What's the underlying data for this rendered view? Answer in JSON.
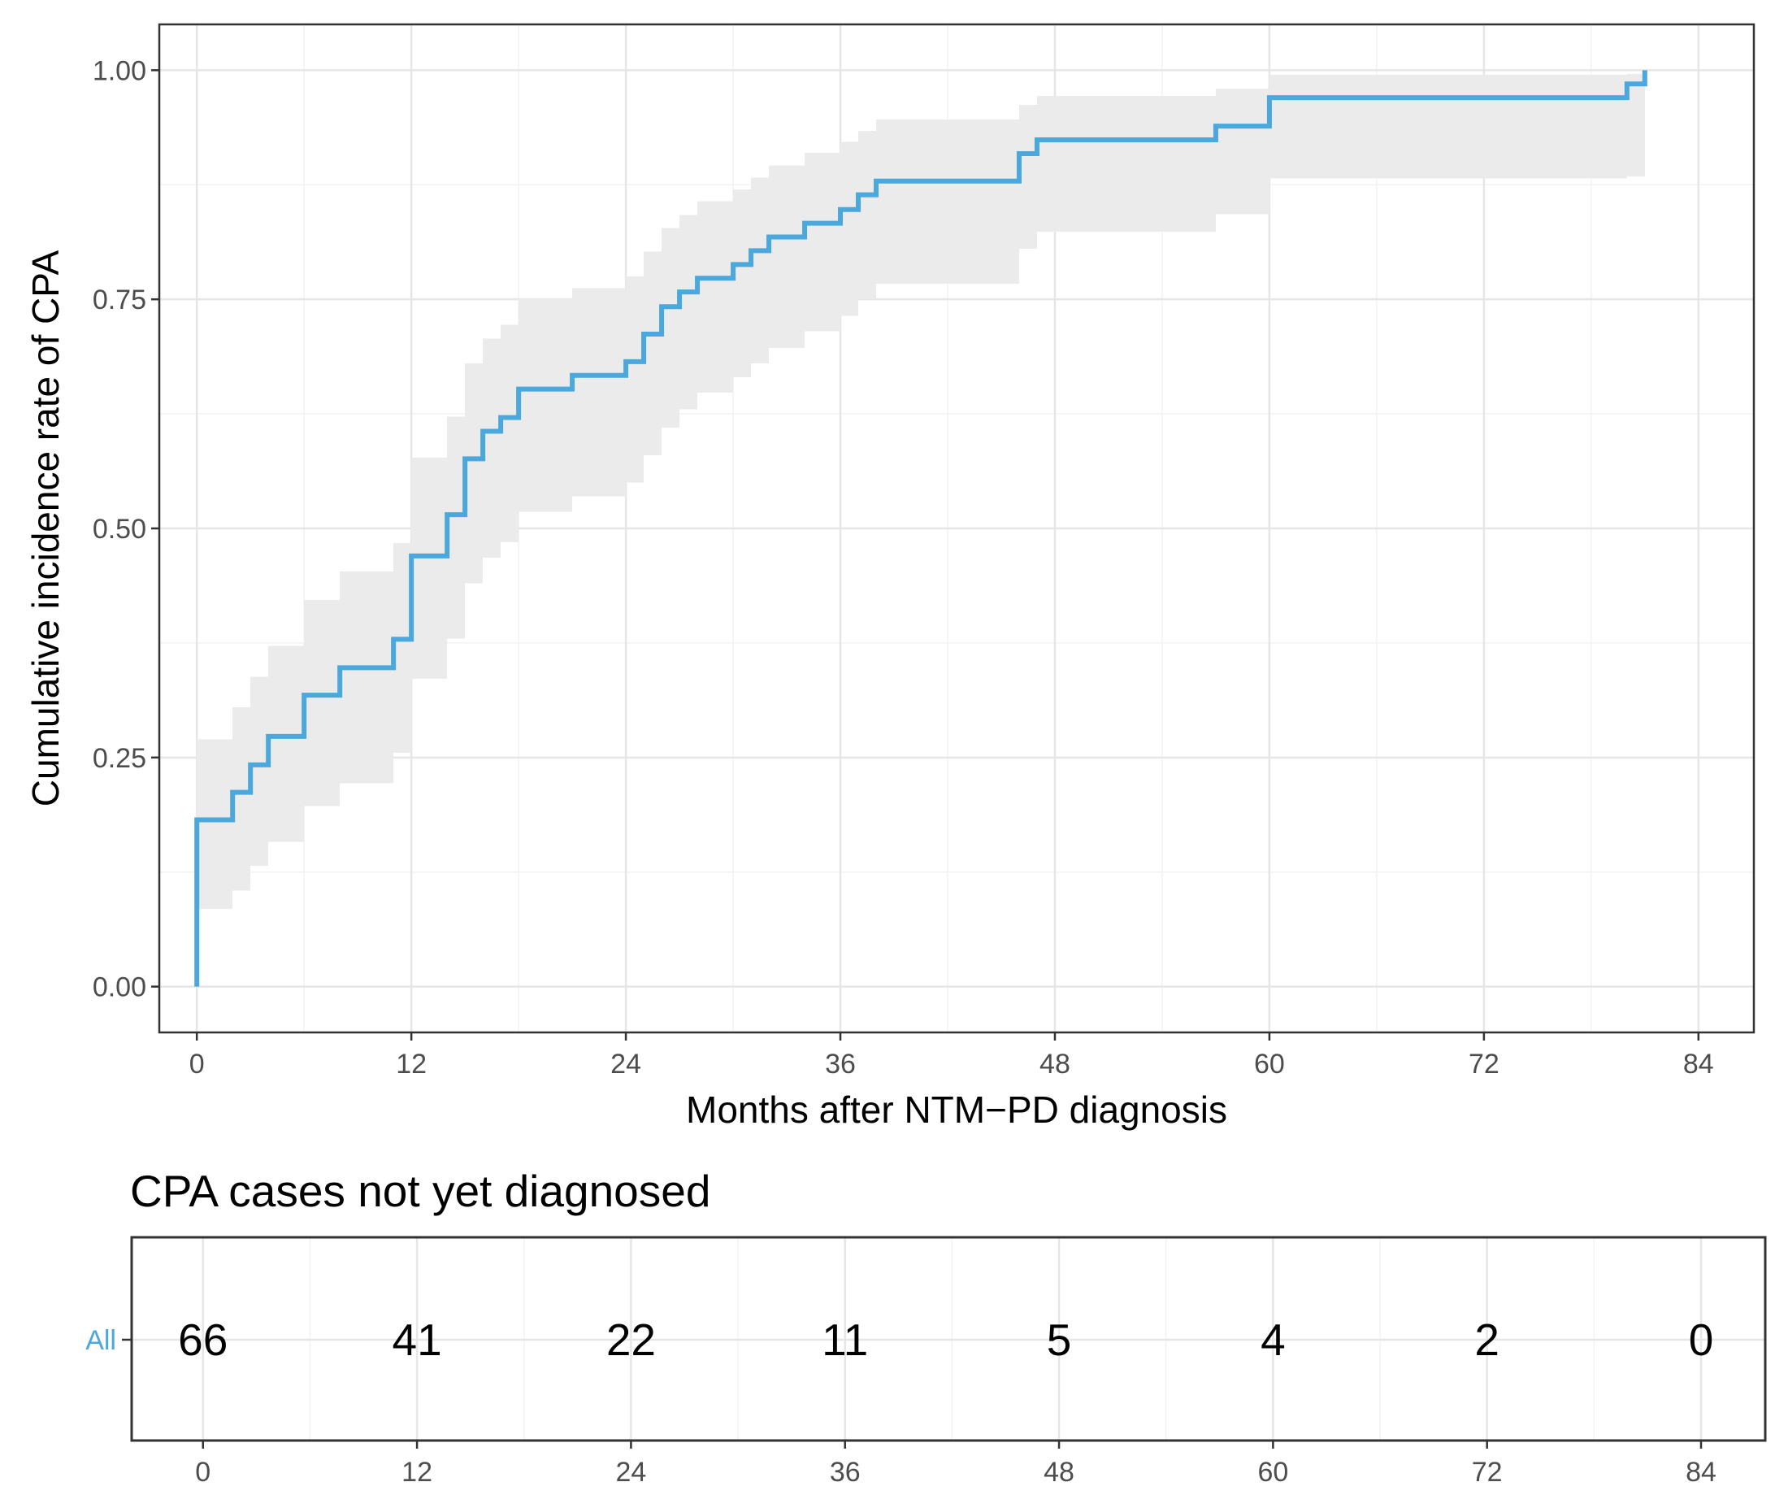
{
  "chart_data": [
    {
      "type": "line",
      "step": true,
      "xlabel": "Months after NTM−PD diagnosis",
      "ylabel": "Cumulative incidence rate of CPA",
      "xlim": [
        -2.1,
        87.1
      ],
      "ylim": [
        -0.05,
        1.05
      ],
      "x_ticks": [
        0,
        12,
        24,
        36,
        48,
        60,
        72,
        84
      ],
      "x_tick_labels": [
        "0",
        "12",
        "24",
        "36",
        "48",
        "60",
        "72",
        "84"
      ],
      "y_ticks": [
        0,
        0.25,
        0.5,
        0.75,
        1.0
      ],
      "y_tick_labels": [
        "0.00",
        "0.25",
        "0.50",
        "0.75",
        "1.00"
      ],
      "grid": true,
      "colors": {
        "line": "#4aa8dc",
        "band": "#ebebeb"
      },
      "series": [
        {
          "x": [
            0,
            0,
            2,
            3,
            4,
            6,
            8,
            11,
            12,
            14,
            15,
            16,
            17,
            18,
            21,
            24,
            25,
            26,
            27,
            28,
            30,
            31,
            32,
            34,
            36,
            37,
            38,
            46,
            47,
            57,
            60,
            80,
            81
          ],
          "y": [
            0,
            0.182,
            0.212,
            0.242,
            0.273,
            0.318,
            0.348,
            0.379,
            0.47,
            0.515,
            0.576,
            0.606,
            0.621,
            0.652,
            0.667,
            0.682,
            0.712,
            0.742,
            0.758,
            0.773,
            0.788,
            0.803,
            0.818,
            0.833,
            0.848,
            0.864,
            0.879,
            0.909,
            0.924,
            0.939,
            0.97,
            0.985,
            1.0
          ],
          "lower": [
            0,
            0.085,
            0.105,
            0.132,
            0.158,
            0.197,
            0.222,
            0.255,
            0.336,
            0.38,
            0.44,
            0.468,
            0.485,
            0.518,
            0.535,
            0.55,
            0.58,
            0.61,
            0.63,
            0.648,
            0.665,
            0.68,
            0.697,
            0.715,
            0.732,
            0.75,
            0.767,
            0.805,
            0.824,
            0.843,
            0.882,
            0.884,
            0.897
          ],
          "upper": [
            0,
            0.27,
            0.305,
            0.338,
            0.372,
            0.422,
            0.453,
            0.484,
            0.577,
            0.622,
            0.68,
            0.707,
            0.722,
            0.75,
            0.762,
            0.775,
            0.802,
            0.828,
            0.842,
            0.857,
            0.87,
            0.883,
            0.896,
            0.91,
            0.922,
            0.934,
            0.946,
            0.962,
            0.972,
            0.98,
            0.995,
            0.996,
            1.0
          ]
        }
      ]
    },
    {
      "type": "table",
      "title": "CPA cases not yet diagnosed",
      "row_labels": [
        "All"
      ],
      "x": [
        0,
        12,
        24,
        36,
        48,
        60,
        72,
        84
      ],
      "values": [
        66,
        41,
        22,
        11,
        5,
        4,
        2,
        0
      ],
      "xlim": [
        -4,
        87.6
      ],
      "x_tick_labels": [
        "0",
        "12",
        "24",
        "36",
        "48",
        "60",
        "72",
        "84"
      ],
      "colors": {
        "row_label": "#4aa8dc"
      }
    }
  ]
}
